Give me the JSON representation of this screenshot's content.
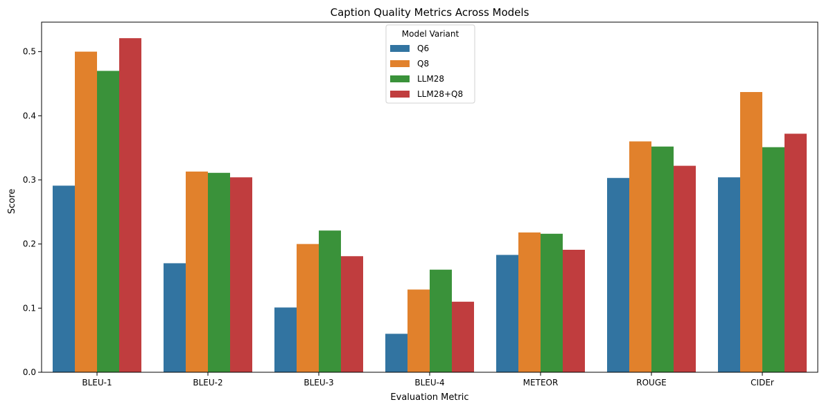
{
  "chart_data": {
    "type": "bar",
    "title": "Caption Quality Metrics Across Models",
    "xlabel": "Evaluation Metric",
    "ylabel": "Score",
    "ylim": [
      0,
      0.546
    ],
    "yticks": [
      "0.0",
      "0.1",
      "0.2",
      "0.3",
      "0.4",
      "0.5"
    ],
    "categories": [
      "BLEU-1",
      "BLEU-2",
      "BLEU-3",
      "BLEU-4",
      "METEOR",
      "ROUGE",
      "CIDEr"
    ],
    "legend_title": "Model Variant",
    "legend_position": "upper center",
    "grid": false,
    "series": [
      {
        "name": "Q6",
        "color": "#3274a1",
        "values": [
          0.291,
          0.17,
          0.101,
          0.06,
          0.183,
          0.303,
          0.304
        ]
      },
      {
        "name": "Q8",
        "color": "#e1812c",
        "values": [
          0.5,
          0.313,
          0.2,
          0.129,
          0.218,
          0.36,
          0.437
        ]
      },
      {
        "name": "LLM28",
        "color": "#3a923a",
        "values": [
          0.47,
          0.311,
          0.221,
          0.16,
          0.216,
          0.352,
          0.351
        ]
      },
      {
        "name": "LLM28+Q8",
        "color": "#c03d3e",
        "values": [
          0.521,
          0.304,
          0.181,
          0.11,
          0.191,
          0.322,
          0.372
        ]
      }
    ]
  }
}
